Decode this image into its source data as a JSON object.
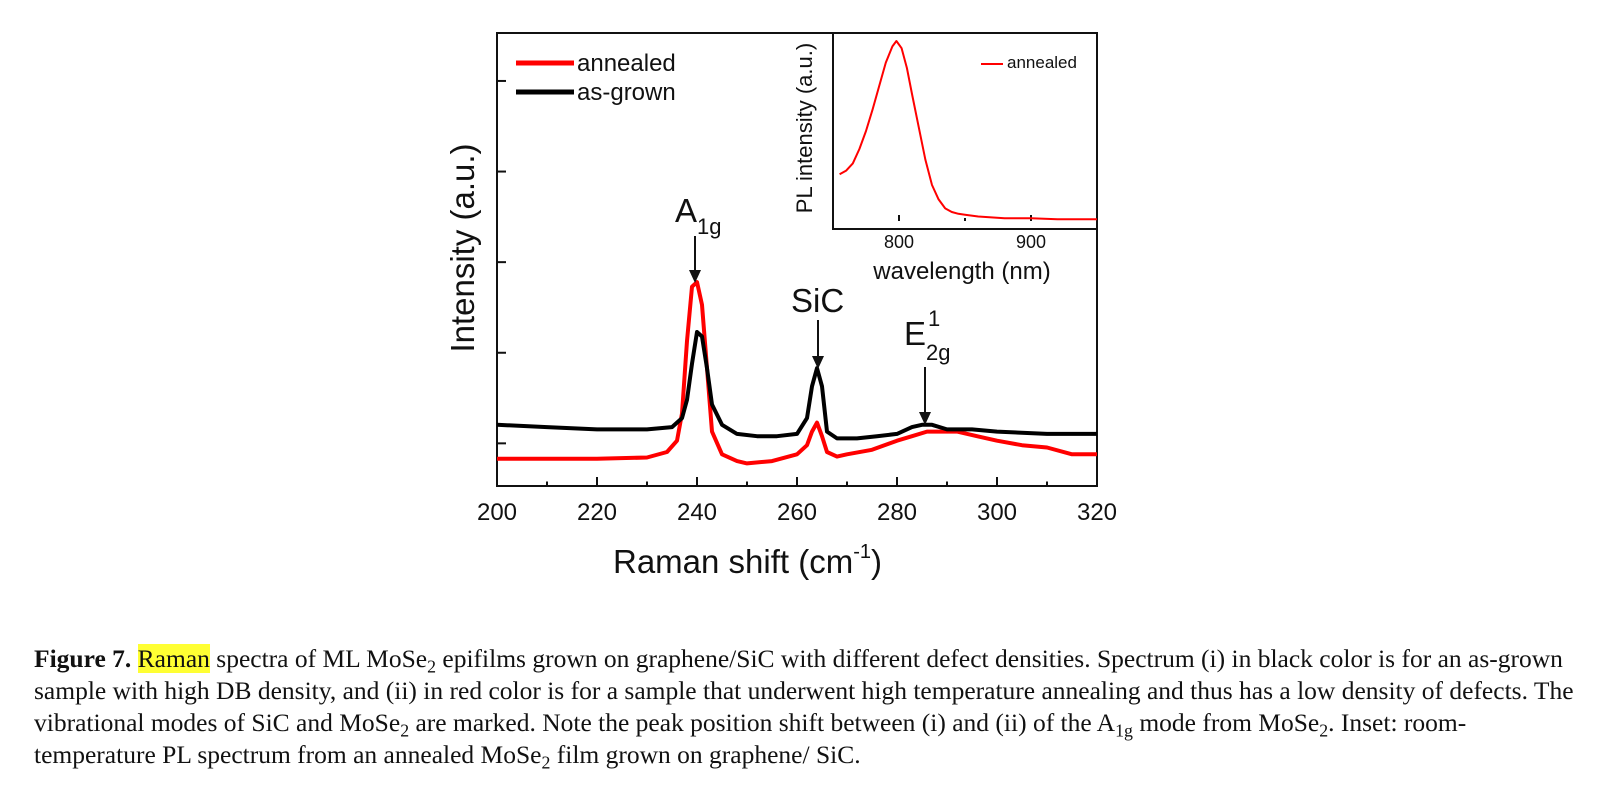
{
  "chart_data": [
    {
      "type": "line",
      "xlabel": "Raman shift (cm",
      "xlabel_sup": "-1",
      "xlabel_end": ")",
      "ylabel": "Intensity (a.u.)",
      "xlim": [
        200,
        320
      ],
      "ylim": [
        0,
        100
      ],
      "y_ticklabels_shown": false,
      "x_ticks": [
        200,
        220,
        240,
        260,
        280,
        300,
        320
      ],
      "legend_position": "top-left",
      "series": [
        {
          "name": "annealed",
          "color": "#ff0000",
          "x": [
            200,
            210,
            220,
            230,
            234,
            236,
            237,
            238,
            239,
            240,
            241,
            242,
            243,
            245,
            248,
            250,
            255,
            260,
            262,
            263,
            264,
            265,
            266,
            268,
            270,
            275,
            280,
            283,
            286,
            289,
            292,
            296,
            300,
            305,
            310,
            315,
            320
          ],
          "y": [
            6,
            6,
            6,
            6.3,
            7.5,
            10,
            16,
            32,
            44,
            45,
            40,
            26,
            12,
            7,
            5.5,
            5,
            5.5,
            7,
            9,
            12,
            14,
            11,
            7.5,
            6.5,
            7,
            8,
            10,
            11,
            12,
            12,
            12,
            11,
            10,
            9,
            8.5,
            7,
            7
          ]
        },
        {
          "name": "as-grown",
          "color": "#000000",
          "x": [
            200,
            210,
            220,
            230,
            235,
            237,
            238,
            239,
            240,
            241,
            242,
            243,
            245,
            248,
            252,
            256,
            260,
            262,
            263,
            264,
            265,
            266,
            268,
            272,
            276,
            280,
            283,
            285,
            287,
            290,
            295,
            300,
            310,
            320
          ],
          "y": [
            13.5,
            13,
            12.5,
            12.5,
            13,
            15,
            19,
            27,
            34,
            33,
            26,
            18,
            13.5,
            11.5,
            11,
            11,
            11.5,
            15,
            22,
            26,
            22,
            12,
            10.5,
            10.5,
            11,
            11.5,
            13,
            13.5,
            13.5,
            12.5,
            12.5,
            12,
            11.5,
            11.5
          ]
        }
      ],
      "annotations": [
        {
          "text": "A",
          "sub": "1g",
          "x": 240
        },
        {
          "text": "SiC",
          "x": 264
        },
        {
          "text": "E",
          "sub": "2g",
          "sup": "1",
          "x": 285
        }
      ]
    },
    {
      "type": "line",
      "inset": true,
      "xlabel": "wavelength (nm)",
      "ylabel": "PL intensity (a.u.)",
      "xlim": [
        750,
        950
      ],
      "ylim": [
        0,
        100
      ],
      "x_ticks": [
        800,
        900
      ],
      "legend_position": "top-right",
      "series": [
        {
          "name": "annealed",
          "color": "#ff0000",
          "x": [
            755,
            760,
            765,
            770,
            775,
            780,
            785,
            790,
            795,
            798,
            802,
            806,
            810,
            815,
            820,
            825,
            830,
            835,
            840,
            845,
            850,
            860,
            870,
            880,
            900,
            920,
            950
          ],
          "y": [
            26,
            28,
            32,
            40,
            50,
            62,
            75,
            88,
            97,
            100,
            96,
            85,
            70,
            52,
            34,
            20,
            12,
            7,
            5,
            4,
            3.5,
            2.5,
            2,
            1.5,
            1.5,
            1,
            1
          ]
        }
      ]
    }
  ],
  "caption": {
    "label": "Figure 7.",
    "highlight": "Raman",
    "t1": " spectra of ML MoSe",
    "s1": "2",
    "t2": " epifilms grown on graphene/SiC with different defect densities. Spectrum (i) in black color is for an as-grown sample with high DB density, and (ii) in red color is for a sample that underwent high temperature annealing and thus has a low density of defects. The vibrational modes of SiC and MoSe",
    "s2": "2",
    "t3": " are marked. Note the peak position shift between (i) and (ii) of the A",
    "s3": "1g",
    "t4": " mode from MoSe",
    "s4": "2",
    "t5": ". Inset: room-temperature PL spectrum from an annealed MoSe",
    "s5": "2",
    "t6": " film grown on graphene/ SiC."
  }
}
